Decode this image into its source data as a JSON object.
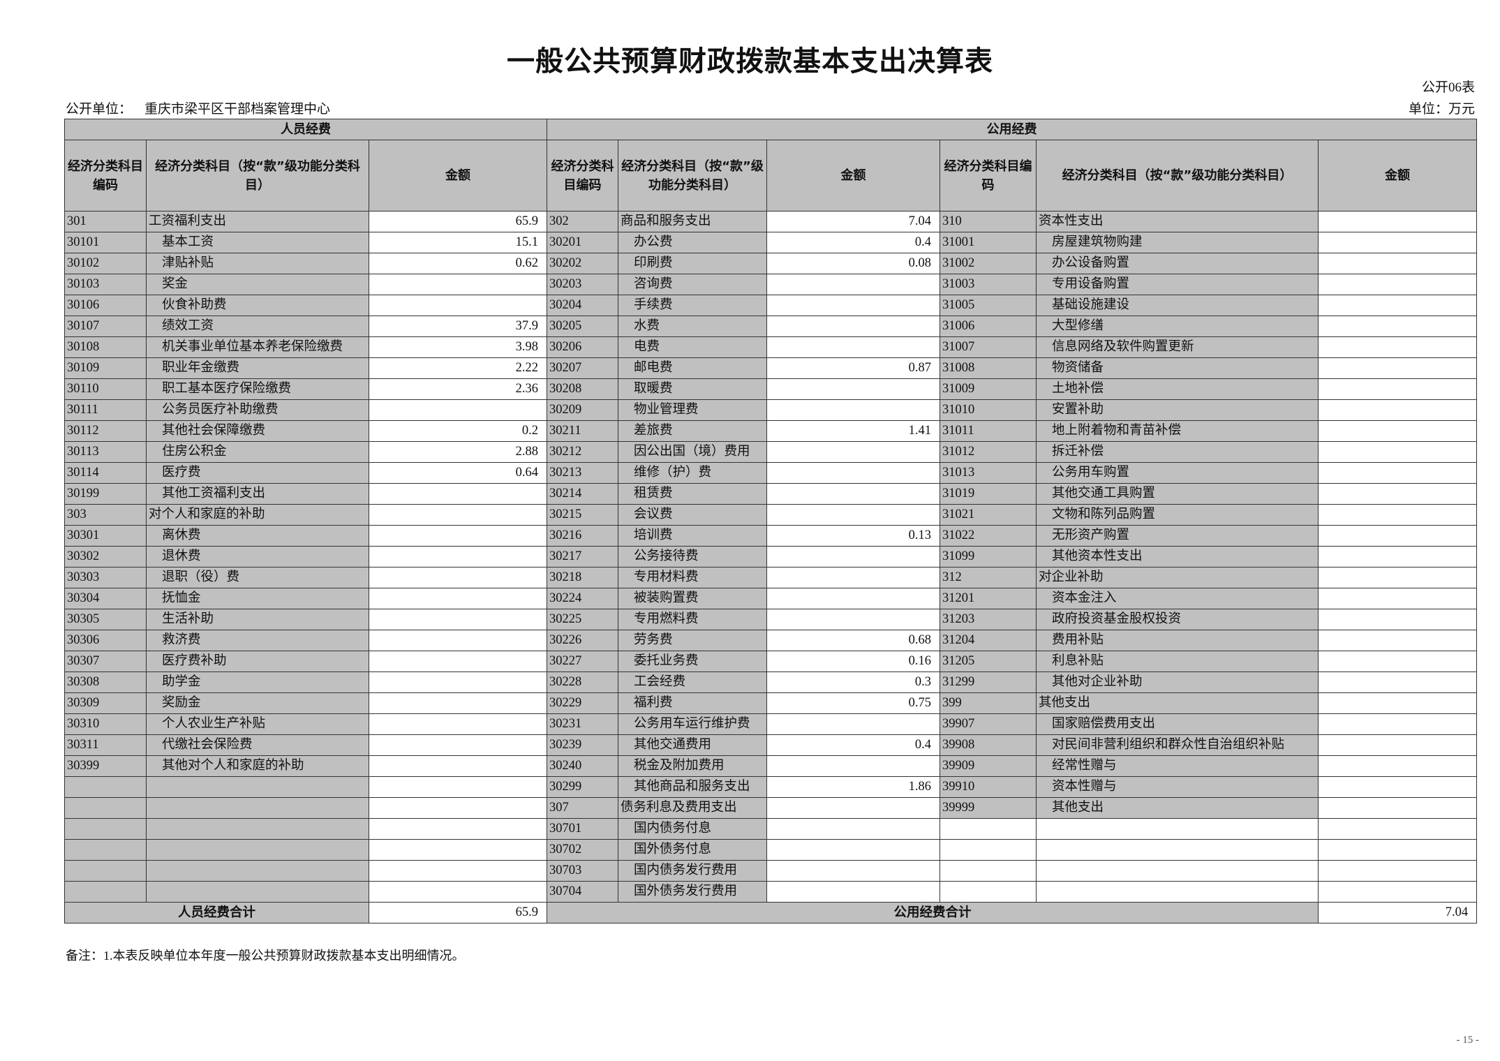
{
  "title": "一般公共预算财政拨款基本支出决算表",
  "form_no": "公开06表",
  "org_label": "公开单位：",
  "org_name": "重庆市梁平区干部档案管理中心",
  "unit": "单位：万元",
  "sections": {
    "personnel": "人员经费",
    "public": "公用经费"
  },
  "headers": {
    "left": [
      "经济分类科目编码",
      "经济分类科目（按“款”级功能分类科目）",
      "金额"
    ],
    "mid": [
      "经济分类科目编码",
      "经济分类科目（按“款”级功能分类科目）",
      "金额"
    ],
    "right": [
      "经济分类科目编码",
      "经济分类科目（按“款”级功能分类科目）",
      "金额"
    ]
  },
  "left_rows": [
    {
      "code": "301",
      "name": "工资福利支出",
      "amount": "65.9"
    },
    {
      "code": "30101",
      "name": "基本工资",
      "amount": "15.1"
    },
    {
      "code": "30102",
      "name": "津贴补贴",
      "amount": "0.62"
    },
    {
      "code": "30103",
      "name": "奖金",
      "amount": ""
    },
    {
      "code": "30106",
      "name": "伙食补助费",
      "amount": ""
    },
    {
      "code": "30107",
      "name": "绩效工资",
      "amount": "37.9"
    },
    {
      "code": "30108",
      "name": "机关事业单位基本养老保险缴费",
      "amount": "3.98"
    },
    {
      "code": "30109",
      "name": "职业年金缴费",
      "amount": "2.22"
    },
    {
      "code": "30110",
      "name": "职工基本医疗保险缴费",
      "amount": "2.36"
    },
    {
      "code": "30111",
      "name": "公务员医疗补助缴费",
      "amount": ""
    },
    {
      "code": "30112",
      "name": "其他社会保障缴费",
      "amount": "0.2"
    },
    {
      "code": "30113",
      "name": "住房公积金",
      "amount": "2.88"
    },
    {
      "code": "30114",
      "name": "医疗费",
      "amount": "0.64"
    },
    {
      "code": "30199",
      "name": "其他工资福利支出",
      "amount": ""
    },
    {
      "code": "303",
      "name": "对个人和家庭的补助",
      "amount": ""
    },
    {
      "code": "30301",
      "name": "离休费",
      "amount": ""
    },
    {
      "code": "30302",
      "name": "退休费",
      "amount": ""
    },
    {
      "code": "30303",
      "name": "退职（役）费",
      "amount": ""
    },
    {
      "code": "30304",
      "name": "抚恤金",
      "amount": ""
    },
    {
      "code": "30305",
      "name": "生活补助",
      "amount": ""
    },
    {
      "code": "30306",
      "name": "救济费",
      "amount": ""
    },
    {
      "code": "30307",
      "name": "医疗费补助",
      "amount": ""
    },
    {
      "code": "30308",
      "name": "助学金",
      "amount": ""
    },
    {
      "code": "30309",
      "name": "奖励金",
      "amount": ""
    },
    {
      "code": "30310",
      "name": "个人农业生产补贴",
      "amount": ""
    },
    {
      "code": "30311",
      "name": "代缴社会保险费",
      "amount": ""
    },
    {
      "code": "30399",
      "name": "其他对个人和家庭的补助",
      "amount": ""
    }
  ],
  "mid_rows": [
    {
      "code": "302",
      "name": "商品和服务支出",
      "amount": "7.04"
    },
    {
      "code": "30201",
      "name": "办公费",
      "amount": "0.4"
    },
    {
      "code": "30202",
      "name": "印刷费",
      "amount": "0.08"
    },
    {
      "code": "30203",
      "name": "咨询费",
      "amount": ""
    },
    {
      "code": "30204",
      "name": "手续费",
      "amount": ""
    },
    {
      "code": "30205",
      "name": "水费",
      "amount": ""
    },
    {
      "code": "30206",
      "name": "电费",
      "amount": ""
    },
    {
      "code": "30207",
      "name": "邮电费",
      "amount": "0.87"
    },
    {
      "code": "30208",
      "name": "取暖费",
      "amount": ""
    },
    {
      "code": "30209",
      "name": "物业管理费",
      "amount": ""
    },
    {
      "code": "30211",
      "name": "差旅费",
      "amount": "1.41"
    },
    {
      "code": "30212",
      "name": "因公出国（境）费用",
      "amount": ""
    },
    {
      "code": "30213",
      "name": "维修（护）费",
      "amount": ""
    },
    {
      "code": "30214",
      "name": "租赁费",
      "amount": ""
    },
    {
      "code": "30215",
      "name": "会议费",
      "amount": ""
    },
    {
      "code": "30216",
      "name": "培训费",
      "amount": "0.13"
    },
    {
      "code": "30217",
      "name": "公务接待费",
      "amount": ""
    },
    {
      "code": "30218",
      "name": "专用材料费",
      "amount": ""
    },
    {
      "code": "30224",
      "name": "被装购置费",
      "amount": ""
    },
    {
      "code": "30225",
      "name": "专用燃料费",
      "amount": ""
    },
    {
      "code": "30226",
      "name": "劳务费",
      "amount": "0.68"
    },
    {
      "code": "30227",
      "name": "委托业务费",
      "amount": "0.16"
    },
    {
      "code": "30228",
      "name": "工会经费",
      "amount": "0.3"
    },
    {
      "code": "30229",
      "name": "福利费",
      "amount": "0.75"
    },
    {
      "code": "30231",
      "name": "公务用车运行维护费",
      "amount": ""
    },
    {
      "code": "30239",
      "name": "其他交通费用",
      "amount": "0.4"
    },
    {
      "code": "30240",
      "name": "税金及附加费用",
      "amount": ""
    },
    {
      "code": "30299",
      "name": "其他商品和服务支出",
      "amount": "1.86"
    },
    {
      "code": "307",
      "name": "债务利息及费用支出",
      "amount": ""
    },
    {
      "code": "30701",
      "name": "国内债务付息",
      "amount": ""
    },
    {
      "code": "30702",
      "name": "国外债务付息",
      "amount": ""
    },
    {
      "code": "30703",
      "name": "国内债务发行费用",
      "amount": ""
    },
    {
      "code": "30704",
      "name": "国外债务发行费用",
      "amount": ""
    }
  ],
  "right_rows": [
    {
      "code": "310",
      "name": "资本性支出",
      "amount": ""
    },
    {
      "code": "31001",
      "name": "房屋建筑物购建",
      "amount": ""
    },
    {
      "code": "31002",
      "name": "办公设备购置",
      "amount": ""
    },
    {
      "code": "31003",
      "name": "专用设备购置",
      "amount": ""
    },
    {
      "code": "31005",
      "name": "基础设施建设",
      "amount": ""
    },
    {
      "code": "31006",
      "name": "大型修缮",
      "amount": ""
    },
    {
      "code": "31007",
      "name": "信息网络及软件购置更新",
      "amount": ""
    },
    {
      "code": "31008",
      "name": "物资储备",
      "amount": ""
    },
    {
      "code": "31009",
      "name": "土地补偿",
      "amount": ""
    },
    {
      "code": "31010",
      "name": "安置补助",
      "amount": ""
    },
    {
      "code": "31011",
      "name": "地上附着物和青苗补偿",
      "amount": ""
    },
    {
      "code": "31012",
      "name": "拆迁补偿",
      "amount": ""
    },
    {
      "code": "31013",
      "name": "公务用车购置",
      "amount": ""
    },
    {
      "code": "31019",
      "name": "其他交通工具购置",
      "amount": ""
    },
    {
      "code": "31021",
      "name": "文物和陈列品购置",
      "amount": ""
    },
    {
      "code": "31022",
      "name": "无形资产购置",
      "amount": ""
    },
    {
      "code": "31099",
      "name": "其他资本性支出",
      "amount": ""
    },
    {
      "code": "312",
      "name": "对企业补助",
      "amount": ""
    },
    {
      "code": "31201",
      "name": "资本金注入",
      "amount": ""
    },
    {
      "code": "31203",
      "name": "政府投资基金股权投资",
      "amount": ""
    },
    {
      "code": "31204",
      "name": "费用补贴",
      "amount": ""
    },
    {
      "code": "31205",
      "name": "利息补贴",
      "amount": ""
    },
    {
      "code": "31299",
      "name": "其他对企业补助",
      "amount": ""
    },
    {
      "code": "399",
      "name": "其他支出",
      "amount": ""
    },
    {
      "code": "39907",
      "name": "国家赔偿费用支出",
      "amount": ""
    },
    {
      "code": "39908",
      "name": "对民间非营利组织和群众性自治组织补贴",
      "amount": ""
    },
    {
      "code": "39909",
      "name": "经常性赠与",
      "amount": ""
    },
    {
      "code": "39910",
      "name": "资本性赠与",
      "amount": ""
    },
    {
      "code": "39999",
      "name": "其他支出",
      "amount": ""
    }
  ],
  "totals": {
    "personnel_label": "人员经费合计",
    "personnel_amount": "65.9",
    "public_label": "公用经费合计",
    "public_amount": "7.04"
  },
  "note": "备注：1.本表反映单位本年度一般公共预算财政拨款基本支出明细情况。",
  "page_number": "- 15 -",
  "colors": {
    "header_gray": "#c0c0c0",
    "border": "#333333"
  }
}
